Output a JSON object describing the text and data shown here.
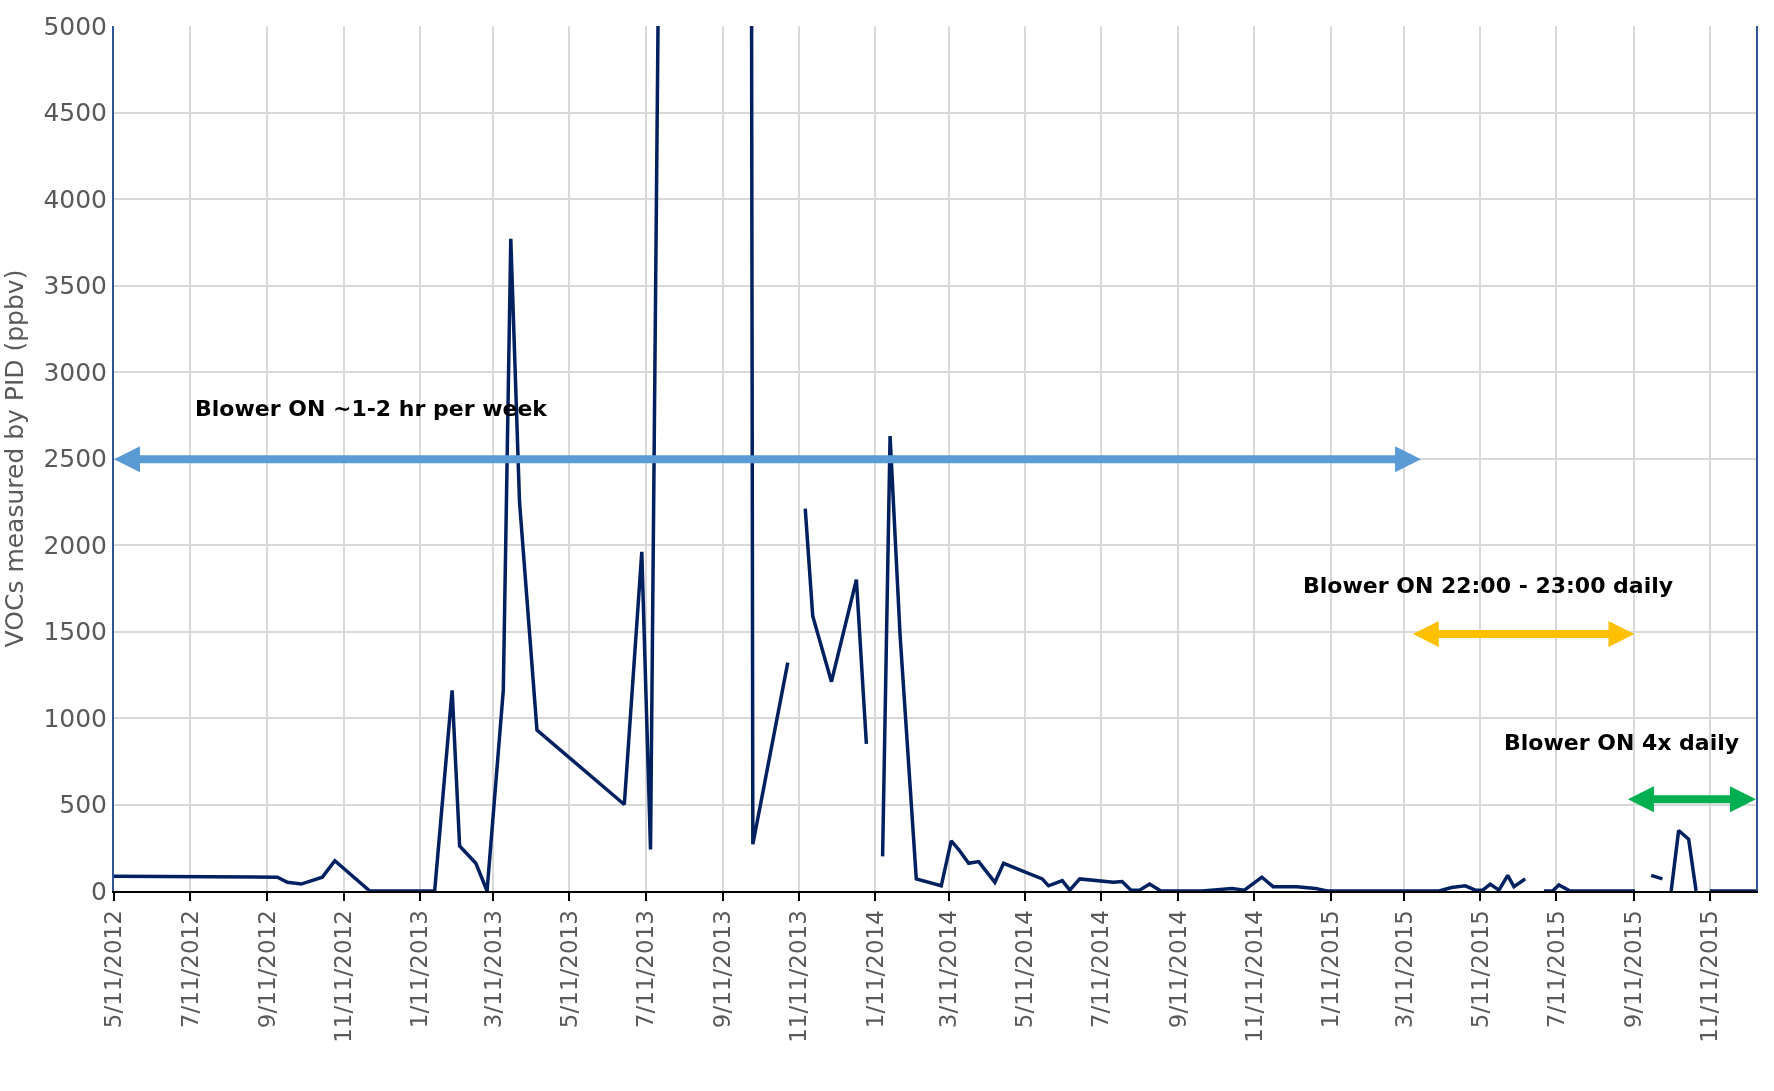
{
  "chart_data": {
    "type": "line",
    "ylabel": "VOCs measured by PID (ppbv)",
    "x": [
      "2012-05-11",
      "2012-09-19",
      "2012-09-27",
      "2012-10-08",
      "2012-10-25",
      "2012-11-04",
      "2012-12-02",
      "2013-01-23",
      "2013-02-06",
      "2013-02-12",
      "2013-02-25",
      "2013-03-06",
      "2013-03-19",
      "2013-03-25",
      "2013-04-01",
      "2013-04-15",
      "2013-06-24",
      "2013-07-08",
      "2013-07-15",
      "2013-07-21",
      "2013-09-01",
      "2013-10-04",
      "2013-10-05",
      "2013-11-02",
      "2013-11-09",
      "2013-11-16",
      "2013-11-22",
      "2013-12-07",
      "2013-12-27",
      "2014-01-04",
      "2014-01-10",
      "2014-01-17",
      "2014-01-23",
      "2014-01-31",
      "2014-02-13",
      "2014-03-05",
      "2014-03-13",
      "2014-03-19",
      "2014-03-27",
      "2014-04-04",
      "2014-04-17",
      "2014-04-24",
      "2014-05-25",
      "2014-05-30",
      "2014-06-10",
      "2014-06-16",
      "2014-06-24",
      "2014-07-21",
      "2014-07-28",
      "2014-08-04",
      "2014-08-11",
      "2014-08-19",
      "2014-08-28",
      "2014-09-30",
      "2014-10-24",
      "2014-11-03",
      "2014-11-17",
      "2014-11-26",
      "2014-12-15",
      "2014-12-30",
      "2015-01-08",
      "2015-04-08",
      "2015-04-18",
      "2015-04-29",
      "2015-05-07",
      "2015-05-13",
      "2015-05-19",
      "2015-05-26",
      "2015-06-02",
      "2015-06-07",
      "2015-06-16",
      "2015-06-24",
      "2015-07-01",
      "2015-07-08",
      "2015-07-13",
      "2015-07-22",
      "2015-09-12",
      "2015-09-18",
      "2015-09-25",
      "2015-10-04",
      "2015-10-08",
      "2015-10-11",
      "2015-10-17",
      "2015-10-25",
      "2015-10-31",
      "2015-11-05",
      "2015-11-11",
      "2015-12-18"
    ],
    "series": [
      {
        "color": "#002060",
        "values": [
          85,
          80,
          50,
          40,
          80,
          175,
          0,
          0,
          1160,
          260,
          160,
          0,
          1160,
          3770,
          2250,
          930,
          500,
          1960,
          240,
          5000,
          null,
          5000,
          270,
          1320,
          null,
          2210,
          1590,
          1210,
          1800,
          850,
          null,
          200,
          2630,
          1480,
          70,
          30,
          290,
          240,
          160,
          170,
          50,
          160,
          70,
          30,
          60,
          5,
          70,
          50,
          55,
          5,
          5,
          40,
          0,
          0,
          15,
          5,
          80,
          25,
          25,
          15,
          0,
          0,
          20,
          30,
          5,
          5,
          40,
          5,
          90,
          25,
          70,
          null,
          0,
          0,
          35,
          0,
          0,
          null,
          90,
          70,
          null,
          0,
          350,
          300,
          0,
          null,
          0,
          0
        ]
      }
    ],
    "xlim": [
      "2012-05-11",
      "2015-12-18"
    ],
    "xticks": [
      {
        "value": "2012-05-11",
        "label": "5/11/2012"
      },
      {
        "value": "2012-07-11",
        "label": "7/11/2012"
      },
      {
        "value": "2012-09-11",
        "label": "9/11/2012"
      },
      {
        "value": "2012-11-11",
        "label": "11/11/2012"
      },
      {
        "value": "2013-01-11",
        "label": "1/11/2013"
      },
      {
        "value": "2013-03-11",
        "label": "3/11/2013"
      },
      {
        "value": "2013-05-11",
        "label": "5/11/2013"
      },
      {
        "value": "2013-07-11",
        "label": "7/11/2013"
      },
      {
        "value": "2013-09-11",
        "label": "9/11/2013"
      },
      {
        "value": "2013-11-11",
        "label": "11/11/2013"
      },
      {
        "value": "2014-01-11",
        "label": "1/11/2014"
      },
      {
        "value": "2014-03-11",
        "label": "3/11/2014"
      },
      {
        "value": "2014-05-11",
        "label": "5/11/2014"
      },
      {
        "value": "2014-07-11",
        "label": "7/11/2014"
      },
      {
        "value": "2014-09-11",
        "label": "9/11/2014"
      },
      {
        "value": "2014-11-11",
        "label": "11/11/2014"
      },
      {
        "value": "2015-01-11",
        "label": "1/11/2015"
      },
      {
        "value": "2015-03-11",
        "label": "3/11/2015"
      },
      {
        "value": "2015-05-11",
        "label": "5/11/2015"
      },
      {
        "value": "2015-07-11",
        "label": "7/11/2015"
      },
      {
        "value": "2015-09-11",
        "label": "9/11/2015"
      },
      {
        "value": "2015-11-11",
        "label": "11/11/2015"
      }
    ],
    "ylim": [
      0,
      5000
    ],
    "yticks": [
      0,
      500,
      1000,
      1500,
      2000,
      2500,
      3000,
      3500,
      4000,
      4500,
      5000
    ],
    "grid": true,
    "legend": false,
    "marker": "none",
    "line_style": "solid",
    "annotations": [
      "Blower ON ~1-2 hr per week",
      "Blower ON 22:00 - 23:00 daily",
      "Blower ON 4x daily"
    ]
  }
}
